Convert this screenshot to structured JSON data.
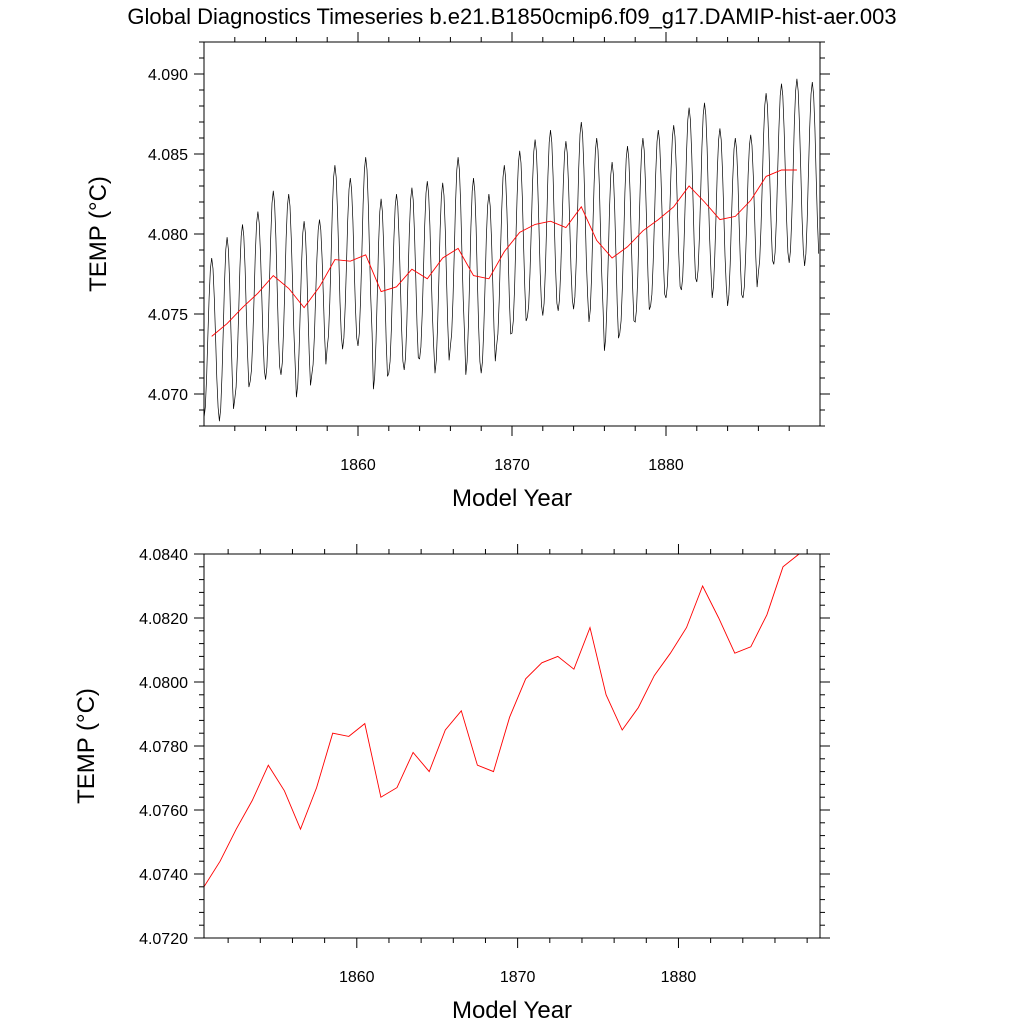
{
  "title": "Global Diagnostics Timeseries b.e21.B1850cmip6.f09_g17.DAMIP-hist-aer.003",
  "colors": {
    "annual": "#ff0000",
    "monthly": "#000000",
    "axes": "#000000"
  },
  "chart_data": [
    {
      "type": "line",
      "xlabel": "Model Year",
      "ylabel": "TEMP (°C)",
      "xlim": [
        1850,
        1890
      ],
      "ylim": [
        4.068,
        4.092
      ],
      "x_ticks": [
        1860,
        1870,
        1880
      ],
      "x_tick_labels": [
        "1860",
        "1870",
        "1880"
      ],
      "y_ticks": [
        4.07,
        4.075,
        4.08,
        4.085,
        4.09
      ],
      "y_tick_labels": [
        "4.070",
        "4.075",
        "4.080",
        "4.085",
        "4.090"
      ],
      "monthly_series": {
        "years": [
          1850,
          1851,
          1852,
          1853,
          1854,
          1855,
          1856,
          1857,
          1858,
          1859,
          1860,
          1861,
          1862,
          1863,
          1864,
          1865,
          1866,
          1867,
          1868,
          1869,
          1870,
          1871,
          1872,
          1873,
          1874,
          1875,
          1876,
          1877,
          1878,
          1879,
          1880,
          1881,
          1882,
          1883,
          1884,
          1885,
          1886,
          1887,
          1888,
          1889
        ],
        "annual_max": [
          4.0785,
          4.0798,
          4.0806,
          4.0814,
          4.0827,
          4.0825,
          4.0808,
          4.0809,
          4.0843,
          4.0835,
          4.0848,
          4.0822,
          4.0825,
          4.0829,
          4.0833,
          4.0832,
          4.0848,
          4.0835,
          4.0825,
          4.0843,
          4.0852,
          4.0859,
          4.0865,
          4.0858,
          4.087,
          4.086,
          4.0845,
          4.0855,
          4.086,
          4.0865,
          4.0868,
          4.0879,
          4.0882,
          4.0866,
          4.086,
          4.0862,
          4.0888,
          4.0894,
          4.0897,
          4.0895
        ],
        "annual_min": [
          4.0685,
          4.0683,
          4.0697,
          4.0708,
          4.0709,
          4.0712,
          4.0698,
          4.0712,
          4.0729,
          4.0728,
          4.073,
          4.0703,
          4.0713,
          4.0715,
          4.0722,
          4.0713,
          4.073,
          4.0712,
          4.0713,
          4.073,
          4.0738,
          4.0748,
          4.0749,
          4.0752,
          4.0753,
          4.0745,
          4.0727,
          4.0738,
          4.0745,
          4.0755,
          4.076,
          4.0765,
          4.077,
          4.076,
          4.0755,
          4.076,
          4.0776,
          4.0781,
          4.0782,
          4.078
        ]
      },
      "series": [
        {
          "x": [
            1850.5,
            1851.5,
            1852.5,
            1853.5,
            1854.5,
            1855.5,
            1856.5,
            1857.5,
            1858.5,
            1859.5,
            1860.5,
            1861.5,
            1862.5,
            1863.5,
            1864.5,
            1865.5,
            1866.5,
            1867.5,
            1868.5,
            1869.5,
            1870.5,
            1871.5,
            1872.5,
            1873.5,
            1874.5,
            1875.5,
            1876.5,
            1877.5,
            1878.5,
            1879.5,
            1880.5,
            1881.5,
            1882.5,
            1883.5,
            1884.5,
            1885.5,
            1886.5,
            1887.5,
            1888.5
          ],
          "values": [
            4.0736,
            4.0744,
            4.0754,
            4.0763,
            4.0774,
            4.0766,
            4.0754,
            4.0767,
            4.0784,
            4.0783,
            4.0787,
            4.0764,
            4.0767,
            4.0778,
            4.0772,
            4.0785,
            4.0791,
            4.0774,
            4.0772,
            4.0789,
            4.0801,
            4.0806,
            4.0808,
            4.0804,
            4.0817,
            4.0796,
            4.0785,
            4.0792,
            4.0802,
            4.0809,
            4.0817,
            4.083,
            4.082,
            4.0809,
            4.0811,
            4.0821,
            4.0836,
            4.084,
            4.084
          ]
        }
      ]
    },
    {
      "type": "line",
      "xlabel": "Model Year",
      "ylabel": "TEMP (°C)",
      "xlim": [
        1850.5,
        1888.8
      ],
      "ylim": [
        4.072,
        4.084
      ],
      "x_ticks": [
        1860,
        1870,
        1880
      ],
      "x_tick_labels": [
        "1860",
        "1870",
        "1880"
      ],
      "y_ticks": [
        4.072,
        4.074,
        4.076,
        4.078,
        4.08,
        4.082,
        4.084
      ],
      "y_tick_labels": [
        "4.0720",
        "4.0740",
        "4.0760",
        "4.0780",
        "4.0800",
        "4.0820",
        "4.0840"
      ],
      "series": [
        {
          "x": [
            1850.5,
            1851.5,
            1852.5,
            1853.5,
            1854.5,
            1855.5,
            1856.5,
            1857.5,
            1858.5,
            1859.5,
            1860.5,
            1861.5,
            1862.5,
            1863.5,
            1864.5,
            1865.5,
            1866.5,
            1867.5,
            1868.5,
            1869.5,
            1870.5,
            1871.5,
            1872.5,
            1873.5,
            1874.5,
            1875.5,
            1876.5,
            1877.5,
            1878.5,
            1879.5,
            1880.5,
            1881.5,
            1882.5,
            1883.5,
            1884.5,
            1885.5,
            1886.5,
            1887.5,
            1888.5
          ],
          "values": [
            4.0736,
            4.0744,
            4.0754,
            4.0763,
            4.0774,
            4.0766,
            4.0754,
            4.0767,
            4.0784,
            4.0783,
            4.0787,
            4.0764,
            4.0767,
            4.0778,
            4.0772,
            4.0785,
            4.0791,
            4.0774,
            4.0772,
            4.0789,
            4.0801,
            4.0806,
            4.0808,
            4.0804,
            4.0817,
            4.0796,
            4.0785,
            4.0792,
            4.0802,
            4.0809,
            4.0817,
            4.083,
            4.082,
            4.0809,
            4.0811,
            4.0821,
            4.0836,
            4.084,
            4.084
          ]
        }
      ]
    }
  ]
}
